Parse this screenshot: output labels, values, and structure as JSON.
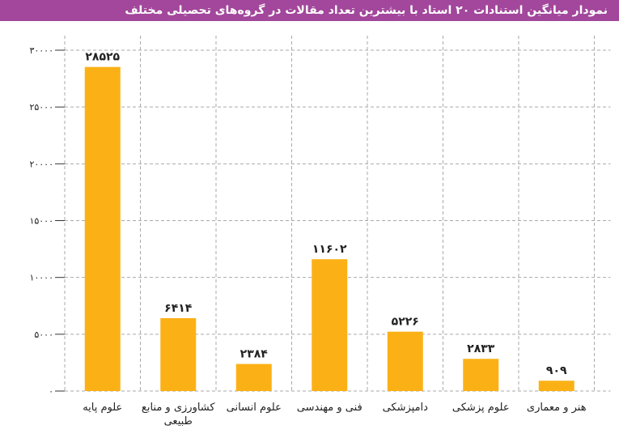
{
  "chart_data": {
    "type": "bar",
    "title": "نمودار میانگین استنادات ۲۰ استاد با بیشترین تعداد مقالات در گروه‌های تحصیلی مختلف",
    "categories": [
      "علوم پایه",
      "کشاورزی و منابع طبیعی",
      "علوم انسانی",
      "فنی و مهندسی",
      "دامپزشکی",
      "علوم پزشکی",
      "هنر و معماری"
    ],
    "values": [
      28525,
      6414,
      2384,
      11602,
      5226,
      2833,
      909
    ],
    "value_labels": [
      "۲۸۵۲۵",
      "۶۴۱۴",
      "۲۳۸۴",
      "۱۱۶۰۲",
      "۵۲۲۶",
      "۲۸۳۳",
      "۹۰۹"
    ],
    "color": "#fbb116",
    "ylim": [
      0,
      30000
    ],
    "yticks": [
      {
        "value": 0,
        "label": "۰"
      },
      {
        "value": 5000,
        "label": "۵۰۰۰"
      },
      {
        "value": 10000,
        "label": "۱۰۰۰۰"
      },
      {
        "value": 15000,
        "label": "۱۵۰۰۰"
      },
      {
        "value": 20000,
        "label": "۲۰۰۰۰"
      },
      {
        "value": 25000,
        "label": "۲۵۰۰۰"
      },
      {
        "value": 30000,
        "label": "۳۰۰۰۰"
      }
    ],
    "grid": true
  }
}
